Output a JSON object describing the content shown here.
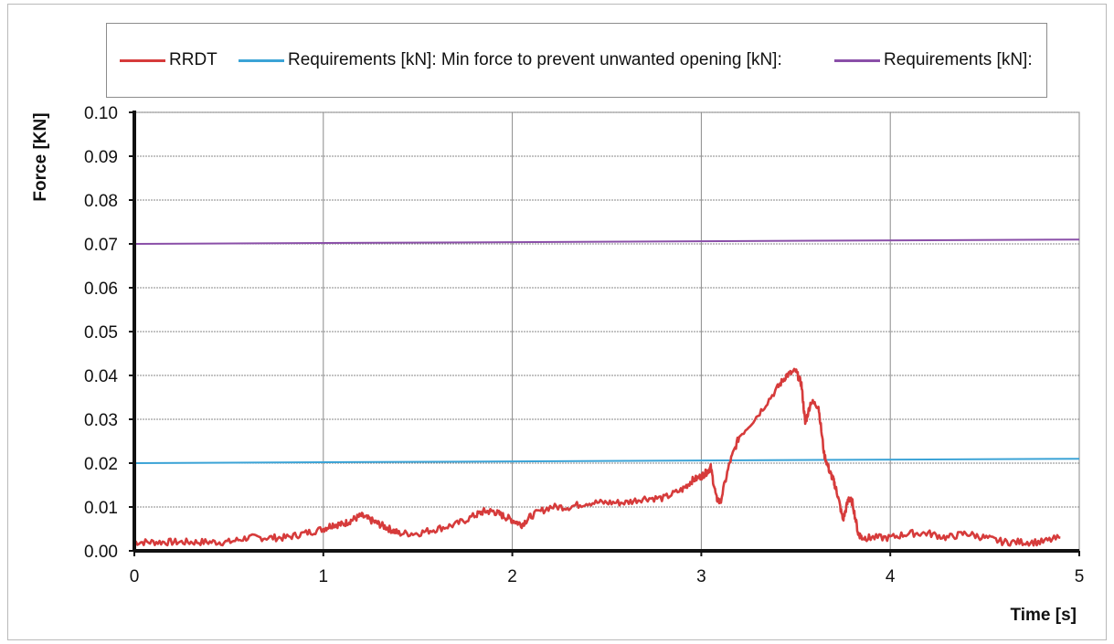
{
  "chart_data": {
    "type": "line",
    "title": "",
    "xlabel": "Time [s]",
    "ylabel": "Force [KN]",
    "xlim": [
      0,
      5
    ],
    "ylim": [
      0,
      0.1
    ],
    "x_ticks": [
      "0",
      "1",
      "2",
      "3",
      "4",
      "5"
    ],
    "y_ticks": [
      "0.00",
      "0.01",
      "0.02",
      "0.03",
      "0.04",
      "0.05",
      "0.06",
      "0.07",
      "0.08",
      "0.09",
      "0.10"
    ],
    "grid": true,
    "legend_position": "top",
    "series": [
      {
        "name": "RRDT",
        "color": "#d63b3b",
        "x": [
          0.0,
          0.1,
          0.2,
          0.3,
          0.4,
          0.5,
          0.6,
          0.7,
          0.8,
          0.9,
          1.0,
          1.05,
          1.1,
          1.15,
          1.2,
          1.25,
          1.3,
          1.35,
          1.4,
          1.5,
          1.6,
          1.7,
          1.8,
          1.85,
          1.9,
          1.95,
          2.0,
          2.05,
          2.1,
          2.2,
          2.3,
          2.4,
          2.5,
          2.6,
          2.7,
          2.8,
          2.9,
          2.95,
          3.0,
          3.03,
          3.05,
          3.08,
          3.1,
          3.15,
          3.2,
          3.3,
          3.4,
          3.45,
          3.5,
          3.53,
          3.55,
          3.58,
          3.62,
          3.65,
          3.68,
          3.7,
          3.72,
          3.75,
          3.78,
          3.8,
          3.83,
          3.85,
          3.9,
          4.0,
          4.1,
          4.2,
          4.3,
          4.4,
          4.5,
          4.6,
          4.7,
          4.8,
          4.9
        ],
        "values": [
          0.002,
          0.002,
          0.002,
          0.002,
          0.002,
          0.002,
          0.003,
          0.003,
          0.003,
          0.004,
          0.005,
          0.006,
          0.006,
          0.007,
          0.008,
          0.007,
          0.006,
          0.005,
          0.004,
          0.004,
          0.005,
          0.006,
          0.008,
          0.009,
          0.009,
          0.008,
          0.007,
          0.006,
          0.008,
          0.01,
          0.01,
          0.011,
          0.011,
          0.011,
          0.012,
          0.012,
          0.014,
          0.016,
          0.017,
          0.018,
          0.019,
          0.012,
          0.011,
          0.02,
          0.026,
          0.031,
          0.037,
          0.04,
          0.041,
          0.038,
          0.029,
          0.034,
          0.033,
          0.022,
          0.018,
          0.016,
          0.013,
          0.007,
          0.012,
          0.011,
          0.004,
          0.003,
          0.003,
          0.003,
          0.004,
          0.004,
          0.003,
          0.004,
          0.003,
          0.002,
          0.002,
          0.002,
          0.003
        ]
      },
      {
        "name": "Requirements [kN]: Min force to prevent unwanted opening [kN]:",
        "color": "#3ba3d6",
        "x": [
          0,
          5
        ],
        "values": [
          0.02,
          0.021
        ]
      },
      {
        "name": "Requirements [kN]:",
        "color": "#8a4fa8",
        "x": [
          0,
          5
        ],
        "values": [
          0.07,
          0.071
        ]
      }
    ]
  }
}
